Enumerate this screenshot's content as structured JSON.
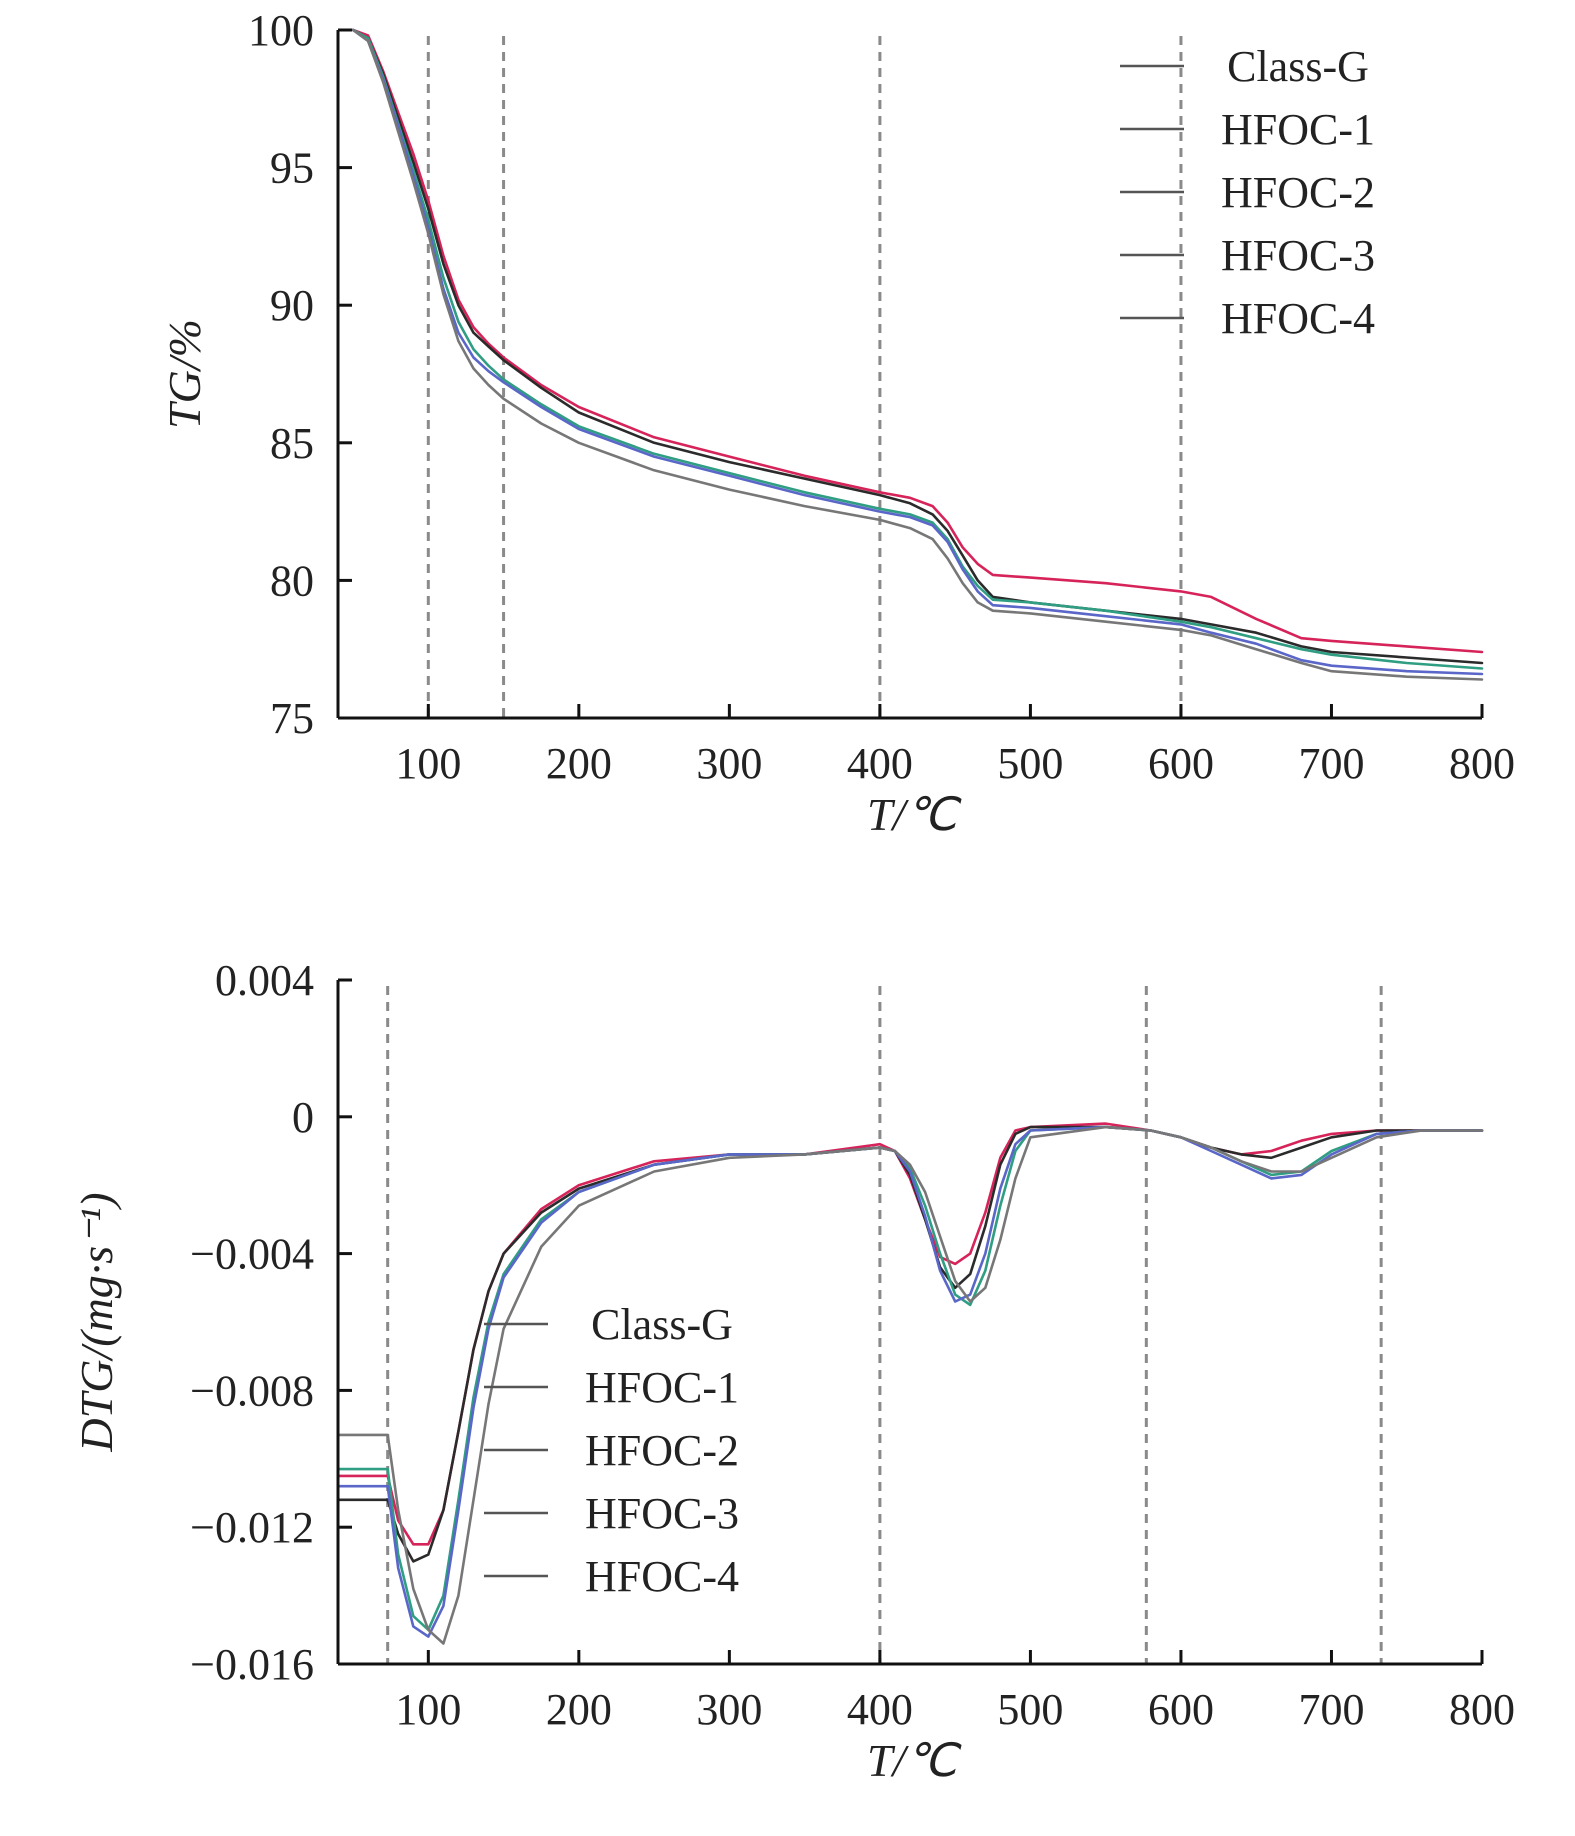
{
  "chart_data": [
    {
      "type": "line",
      "xlabel": "T/℃",
      "ylabel": "TG/%",
      "xlim": [
        40,
        800
      ],
      "ylim": [
        75,
        100
      ],
      "xticks": [
        100,
        200,
        300,
        400,
        500,
        600,
        700,
        800
      ],
      "yticks": [
        75,
        80,
        85,
        90,
        95,
        100
      ],
      "ytick_labels": [
        "75",
        "80",
        "85",
        "90",
        "95",
        "100"
      ],
      "reference_lines_x": [
        100,
        150,
        400,
        600
      ],
      "legend": "top-right",
      "grid": false,
      "series": [
        {
          "name": "Class-G",
          "color": "#d6245a",
          "x": [
            50,
            60,
            70,
            80,
            90,
            100,
            110,
            120,
            130,
            140,
            150,
            175,
            200,
            250,
            300,
            350,
            400,
            420,
            435,
            445,
            455,
            465,
            475,
            500,
            550,
            600,
            620,
            650,
            680,
            700,
            750,
            800
          ],
          "y": [
            100,
            99.8,
            98.5,
            97,
            95.5,
            93.8,
            91.8,
            90.2,
            89.2,
            88.6,
            88.1,
            87.1,
            86.3,
            85.2,
            84.5,
            83.8,
            83.2,
            83.0,
            82.7,
            82.1,
            81.2,
            80.6,
            80.2,
            80.1,
            79.9,
            79.6,
            79.4,
            78.6,
            77.9,
            77.8,
            77.6,
            77.4
          ]
        },
        {
          "name": "HFOC-1",
          "color": "#2b2b2b",
          "x": [
            50,
            60,
            70,
            80,
            90,
            100,
            110,
            120,
            130,
            140,
            150,
            175,
            200,
            250,
            300,
            350,
            400,
            420,
            435,
            445,
            455,
            465,
            475,
            500,
            550,
            600,
            620,
            650,
            680,
            700,
            750,
            800
          ],
          "y": [
            100,
            99.7,
            98.4,
            96.8,
            95.2,
            93.5,
            91.5,
            90.0,
            89.0,
            88.5,
            88.0,
            87.0,
            86.1,
            85.0,
            84.3,
            83.7,
            83.1,
            82.8,
            82.4,
            81.8,
            80.9,
            80.0,
            79.4,
            79.2,
            78.9,
            78.6,
            78.4,
            78.1,
            77.6,
            77.4,
            77.2,
            77.0
          ]
        },
        {
          "name": "HFOC-2",
          "color": "#2f9e82",
          "x": [
            50,
            60,
            70,
            80,
            90,
            100,
            110,
            120,
            130,
            140,
            150,
            175,
            200,
            250,
            300,
            350,
            400,
            420,
            435,
            445,
            455,
            465,
            475,
            500,
            550,
            600,
            620,
            650,
            680,
            700,
            750,
            800
          ],
          "y": [
            100,
            99.7,
            98.3,
            96.6,
            94.9,
            93.1,
            91.0,
            89.4,
            88.4,
            87.8,
            87.3,
            86.4,
            85.6,
            84.6,
            83.9,
            83.2,
            82.6,
            82.4,
            82.1,
            81.5,
            80.5,
            79.8,
            79.3,
            79.2,
            78.9,
            78.5,
            78.3,
            77.9,
            77.5,
            77.3,
            77.0,
            76.8
          ]
        },
        {
          "name": "HFOC-3",
          "color": "#5a66c8",
          "x": [
            50,
            60,
            70,
            80,
            90,
            100,
            110,
            120,
            130,
            140,
            150,
            175,
            200,
            250,
            300,
            350,
            400,
            420,
            435,
            445,
            455,
            465,
            475,
            500,
            550,
            600,
            620,
            650,
            680,
            700,
            750,
            800
          ],
          "y": [
            100,
            99.6,
            98.2,
            96.5,
            94.7,
            92.8,
            90.6,
            89.0,
            88.1,
            87.6,
            87.2,
            86.3,
            85.5,
            84.5,
            83.8,
            83.1,
            82.5,
            82.3,
            82.0,
            81.4,
            80.4,
            79.6,
            79.1,
            79.0,
            78.7,
            78.4,
            78.1,
            77.7,
            77.1,
            76.9,
            76.7,
            76.6
          ]
        },
        {
          "name": "HFOC-4",
          "color": "#777777",
          "x": [
            50,
            60,
            70,
            80,
            90,
            100,
            110,
            120,
            130,
            140,
            150,
            175,
            200,
            250,
            300,
            350,
            400,
            420,
            435,
            445,
            455,
            465,
            475,
            500,
            550,
            600,
            620,
            650,
            680,
            700,
            750,
            800
          ],
          "y": [
            100,
            99.6,
            98.1,
            96.3,
            94.5,
            92.6,
            90.4,
            88.7,
            87.7,
            87.1,
            86.6,
            85.7,
            85.0,
            84.0,
            83.3,
            82.7,
            82.2,
            81.9,
            81.5,
            80.8,
            79.9,
            79.2,
            78.9,
            78.8,
            78.5,
            78.2,
            78.0,
            77.5,
            77.0,
            76.7,
            76.5,
            76.4
          ]
        }
      ]
    },
    {
      "type": "line",
      "xlabel": "T/℃",
      "ylabel": "DTG/(mg·s⁻¹)",
      "xlim": [
        40,
        800
      ],
      "ylim": [
        -0.016,
        0.004
      ],
      "xticks": [
        100,
        200,
        300,
        400,
        500,
        600,
        700,
        800
      ],
      "yticks": [
        -0.016,
        -0.012,
        -0.008,
        -0.004,
        0,
        0.004
      ],
      "ytick_labels": [
        "−0.016",
        "−0.012",
        "−0.008",
        "−0.004",
        "0",
        "0.004"
      ],
      "reference_lines_x": [
        73,
        400,
        577,
        733
      ],
      "legend": "center-left",
      "grid": false,
      "series": [
        {
          "name": "Class-G",
          "color": "#d6245a",
          "x": [
            40,
            73,
            80,
            90,
            100,
            110,
            120,
            130,
            140,
            150,
            175,
            200,
            250,
            300,
            350,
            400,
            410,
            420,
            430,
            440,
            450,
            460,
            470,
            480,
            490,
            500,
            550,
            580,
            600,
            620,
            640,
            660,
            680,
            700,
            730,
            760,
            800
          ],
          "y": [
            -0.0105,
            -0.0105,
            -0.0118,
            -0.0125,
            -0.0125,
            -0.0115,
            -0.0092,
            -0.0068,
            -0.0051,
            -0.004,
            -0.0027,
            -0.002,
            -0.0013,
            -0.0011,
            -0.0011,
            -0.0008,
            -0.001,
            -0.0018,
            -0.003,
            -0.0041,
            -0.0043,
            -0.004,
            -0.0028,
            -0.0012,
            -0.0004,
            -0.0003,
            -0.0002,
            -0.0004,
            -0.0006,
            -0.0009,
            -0.0011,
            -0.001,
            -0.0007,
            -0.0005,
            -0.0004,
            -0.0004,
            -0.0004
          ]
        },
        {
          "name": "HFOC-1",
          "color": "#2b2b2b",
          "x": [
            40,
            73,
            80,
            90,
            100,
            110,
            120,
            130,
            140,
            150,
            175,
            200,
            250,
            300,
            350,
            400,
            410,
            420,
            430,
            440,
            450,
            460,
            470,
            480,
            490,
            500,
            550,
            580,
            600,
            620,
            640,
            660,
            680,
            700,
            730,
            760,
            800
          ],
          "y": [
            -0.0112,
            -0.0112,
            -0.0122,
            -0.013,
            -0.0128,
            -0.0115,
            -0.0092,
            -0.0068,
            -0.0051,
            -0.004,
            -0.0028,
            -0.0021,
            -0.0014,
            -0.0011,
            -0.0011,
            -0.0009,
            -0.001,
            -0.0017,
            -0.003,
            -0.0044,
            -0.005,
            -0.0046,
            -0.0032,
            -0.0014,
            -0.0005,
            -0.0003,
            -0.0003,
            -0.0004,
            -0.0006,
            -0.0009,
            -0.0011,
            -0.0012,
            -0.0009,
            -0.0006,
            -0.0004,
            -0.0004,
            -0.0004
          ]
        },
        {
          "name": "HFOC-2",
          "color": "#2f9e82",
          "x": [
            40,
            73,
            80,
            90,
            100,
            110,
            120,
            130,
            140,
            150,
            175,
            200,
            250,
            300,
            350,
            400,
            410,
            420,
            430,
            440,
            450,
            460,
            470,
            480,
            490,
            500,
            550,
            580,
            600,
            620,
            640,
            660,
            680,
            700,
            730,
            760,
            800
          ],
          "y": [
            -0.0103,
            -0.0103,
            -0.0128,
            -0.0146,
            -0.015,
            -0.014,
            -0.0112,
            -0.0082,
            -0.006,
            -0.0046,
            -0.003,
            -0.0022,
            -0.0014,
            -0.0011,
            -0.0011,
            -0.0009,
            -0.001,
            -0.0015,
            -0.0026,
            -0.004,
            -0.0052,
            -0.0055,
            -0.0045,
            -0.0026,
            -0.001,
            -0.0004,
            -0.0003,
            -0.0004,
            -0.0006,
            -0.0009,
            -0.0013,
            -0.0017,
            -0.0016,
            -0.001,
            -0.0005,
            -0.0004,
            -0.0004
          ]
        },
        {
          "name": "HFOC-3",
          "color": "#5a66c8",
          "x": [
            40,
            73,
            80,
            90,
            100,
            110,
            120,
            130,
            140,
            150,
            175,
            200,
            250,
            300,
            350,
            400,
            410,
            420,
            430,
            440,
            450,
            460,
            470,
            480,
            490,
            500,
            550,
            580,
            600,
            620,
            640,
            660,
            680,
            700,
            730,
            760,
            800
          ],
          "y": [
            -0.0108,
            -0.0108,
            -0.0132,
            -0.0149,
            -0.0152,
            -0.0143,
            -0.0115,
            -0.0085,
            -0.0062,
            -0.0047,
            -0.0031,
            -0.0022,
            -0.0014,
            -0.0011,
            -0.0011,
            -0.0009,
            -0.001,
            -0.0016,
            -0.0029,
            -0.0045,
            -0.0054,
            -0.0052,
            -0.004,
            -0.0021,
            -0.0008,
            -0.0004,
            -0.0003,
            -0.0004,
            -0.0006,
            -0.001,
            -0.0014,
            -0.0018,
            -0.0017,
            -0.0011,
            -0.0005,
            -0.0004,
            -0.0004
          ]
        },
        {
          "name": "HFOC-4",
          "color": "#777777",
          "x": [
            40,
            73,
            80,
            90,
            100,
            110,
            120,
            130,
            140,
            150,
            175,
            200,
            250,
            300,
            350,
            400,
            410,
            420,
            430,
            440,
            450,
            460,
            470,
            480,
            490,
            500,
            550,
            580,
            600,
            620,
            640,
            660,
            680,
            700,
            730,
            760,
            800
          ],
          "y": [
            -0.0093,
            -0.0093,
            -0.0115,
            -0.0138,
            -0.015,
            -0.0154,
            -0.014,
            -0.0112,
            -0.0084,
            -0.0062,
            -0.0038,
            -0.0026,
            -0.0016,
            -0.0012,
            -0.0011,
            -0.0009,
            -0.001,
            -0.0014,
            -0.0022,
            -0.0035,
            -0.0048,
            -0.0054,
            -0.005,
            -0.0036,
            -0.0018,
            -0.0006,
            -0.0003,
            -0.0004,
            -0.0006,
            -0.0009,
            -0.0013,
            -0.0016,
            -0.0016,
            -0.0012,
            -0.0006,
            -0.0004,
            -0.0004
          ]
        }
      ]
    }
  ]
}
